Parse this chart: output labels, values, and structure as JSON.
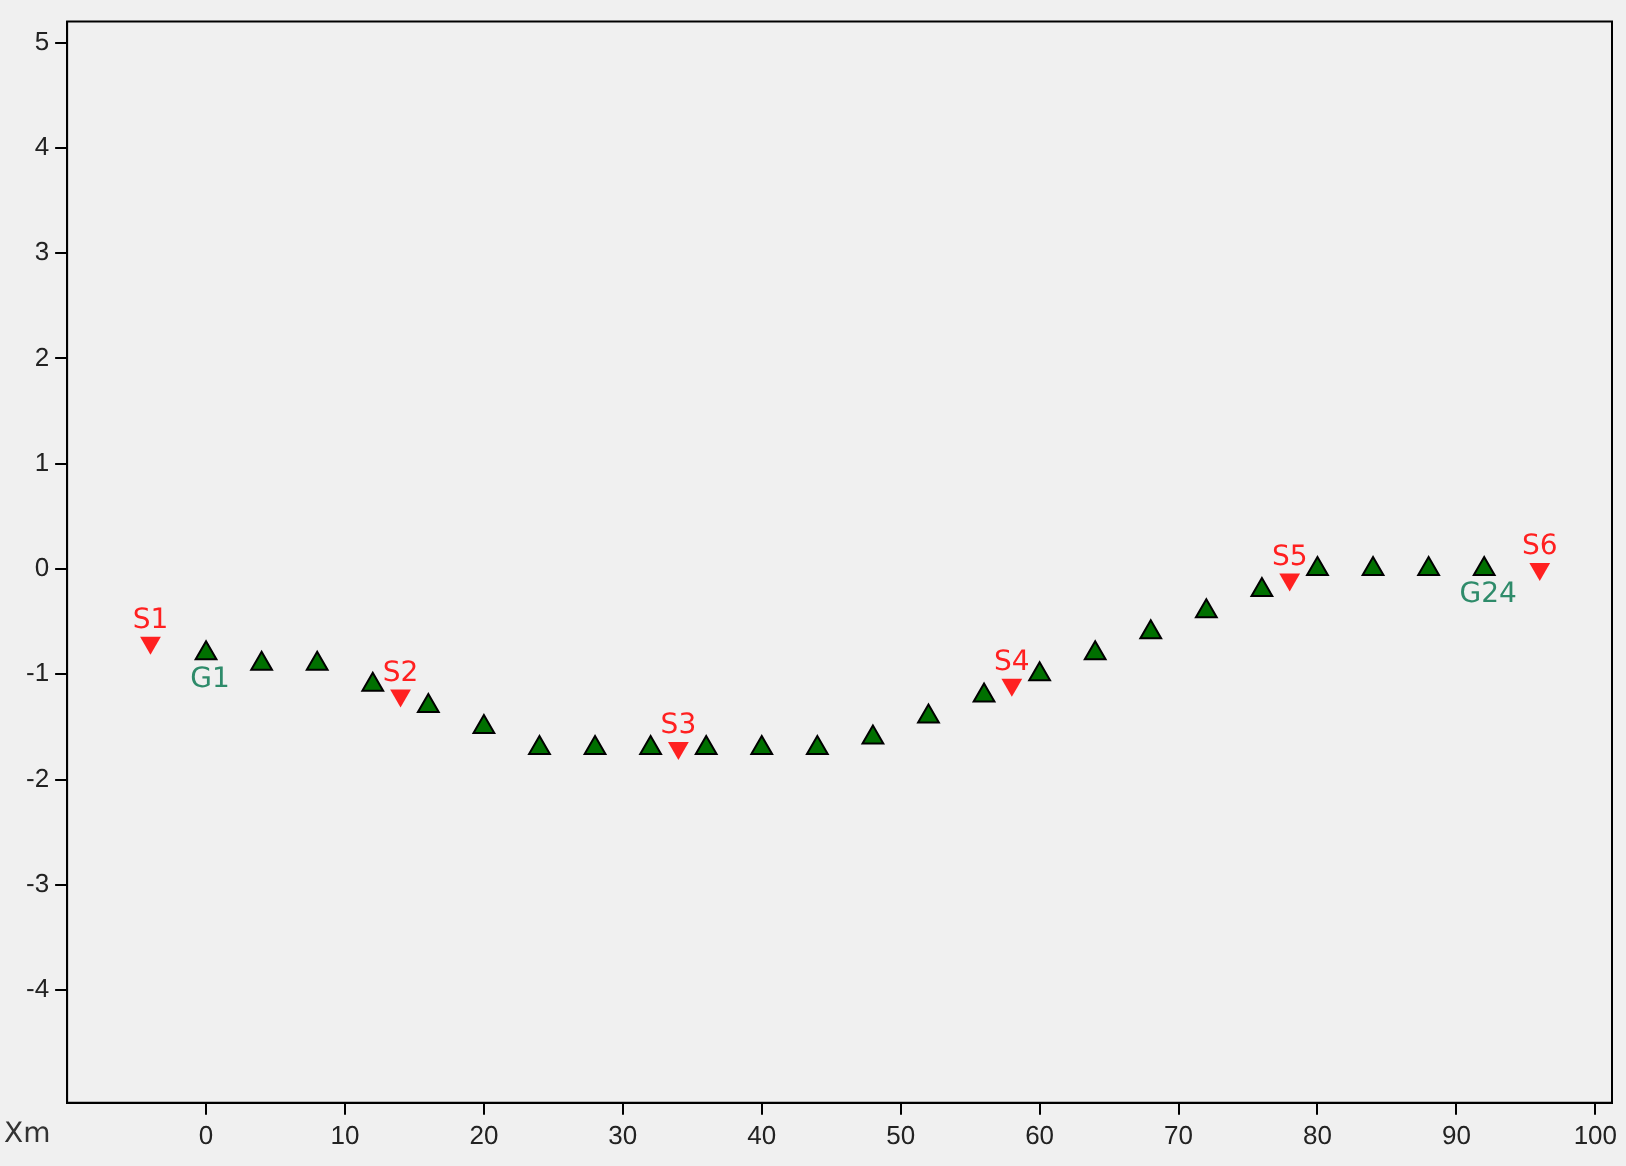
{
  "chart_data": {
    "type": "scatter",
    "xlabel": "Xm",
    "xlim": [
      -10,
      101.2
    ],
    "ylim": [
      -5.07,
      5.2
    ],
    "xticks": [
      0,
      10,
      20,
      30,
      40,
      50,
      60,
      70,
      80,
      90,
      100
    ],
    "yticks": [
      -4,
      -3,
      -2,
      -1,
      0,
      1,
      2,
      3,
      4,
      5
    ],
    "grid": false,
    "legend": false,
    "marker": "triangle",
    "series": [
      {
        "color": "#007000",
        "x": [
          0,
          4,
          8,
          12,
          16,
          20,
          24,
          28,
          32,
          36,
          40,
          44,
          48,
          52,
          56,
          60,
          64,
          68,
          72,
          76,
          80,
          84,
          88,
          92
        ],
        "values": [
          -0.8,
          -0.9,
          -0.9,
          -1.1,
          -1.3,
          -1.5,
          -1.7,
          -1.7,
          -1.7,
          -1.7,
          -1.7,
          -1.7,
          -1.6,
          -1.4,
          -1.2,
          -1.0,
          -0.8,
          -0.6,
          -0.4,
          -0.2,
          0,
          0,
          0,
          0
        ]
      },
      {
        "color": "#ff2020",
        "x": [
          -4,
          14,
          34,
          58,
          78,
          96
        ],
        "values": [
          -0.7,
          -1.2,
          -1.7,
          -1.1,
          -0.1,
          0
        ]
      }
    ],
    "annotations": [
      {
        "text": "S1",
        "x": -4,
        "y": -0.7
      },
      {
        "text": "S2",
        "x": 14,
        "y": -1.2
      },
      {
        "text": "S3",
        "x": 34,
        "y": -1.7
      },
      {
        "text": "S4",
        "x": 58,
        "y": -1.1
      },
      {
        "text": "S5",
        "x": 78,
        "y": -0.1
      },
      {
        "text": "S6",
        "x": 96,
        "y": 0
      },
      {
        "text": "G1",
        "x": 0,
        "y": -0.8
      },
      {
        "text": "G24",
        "x": 92,
        "y": 0
      }
    ]
  }
}
